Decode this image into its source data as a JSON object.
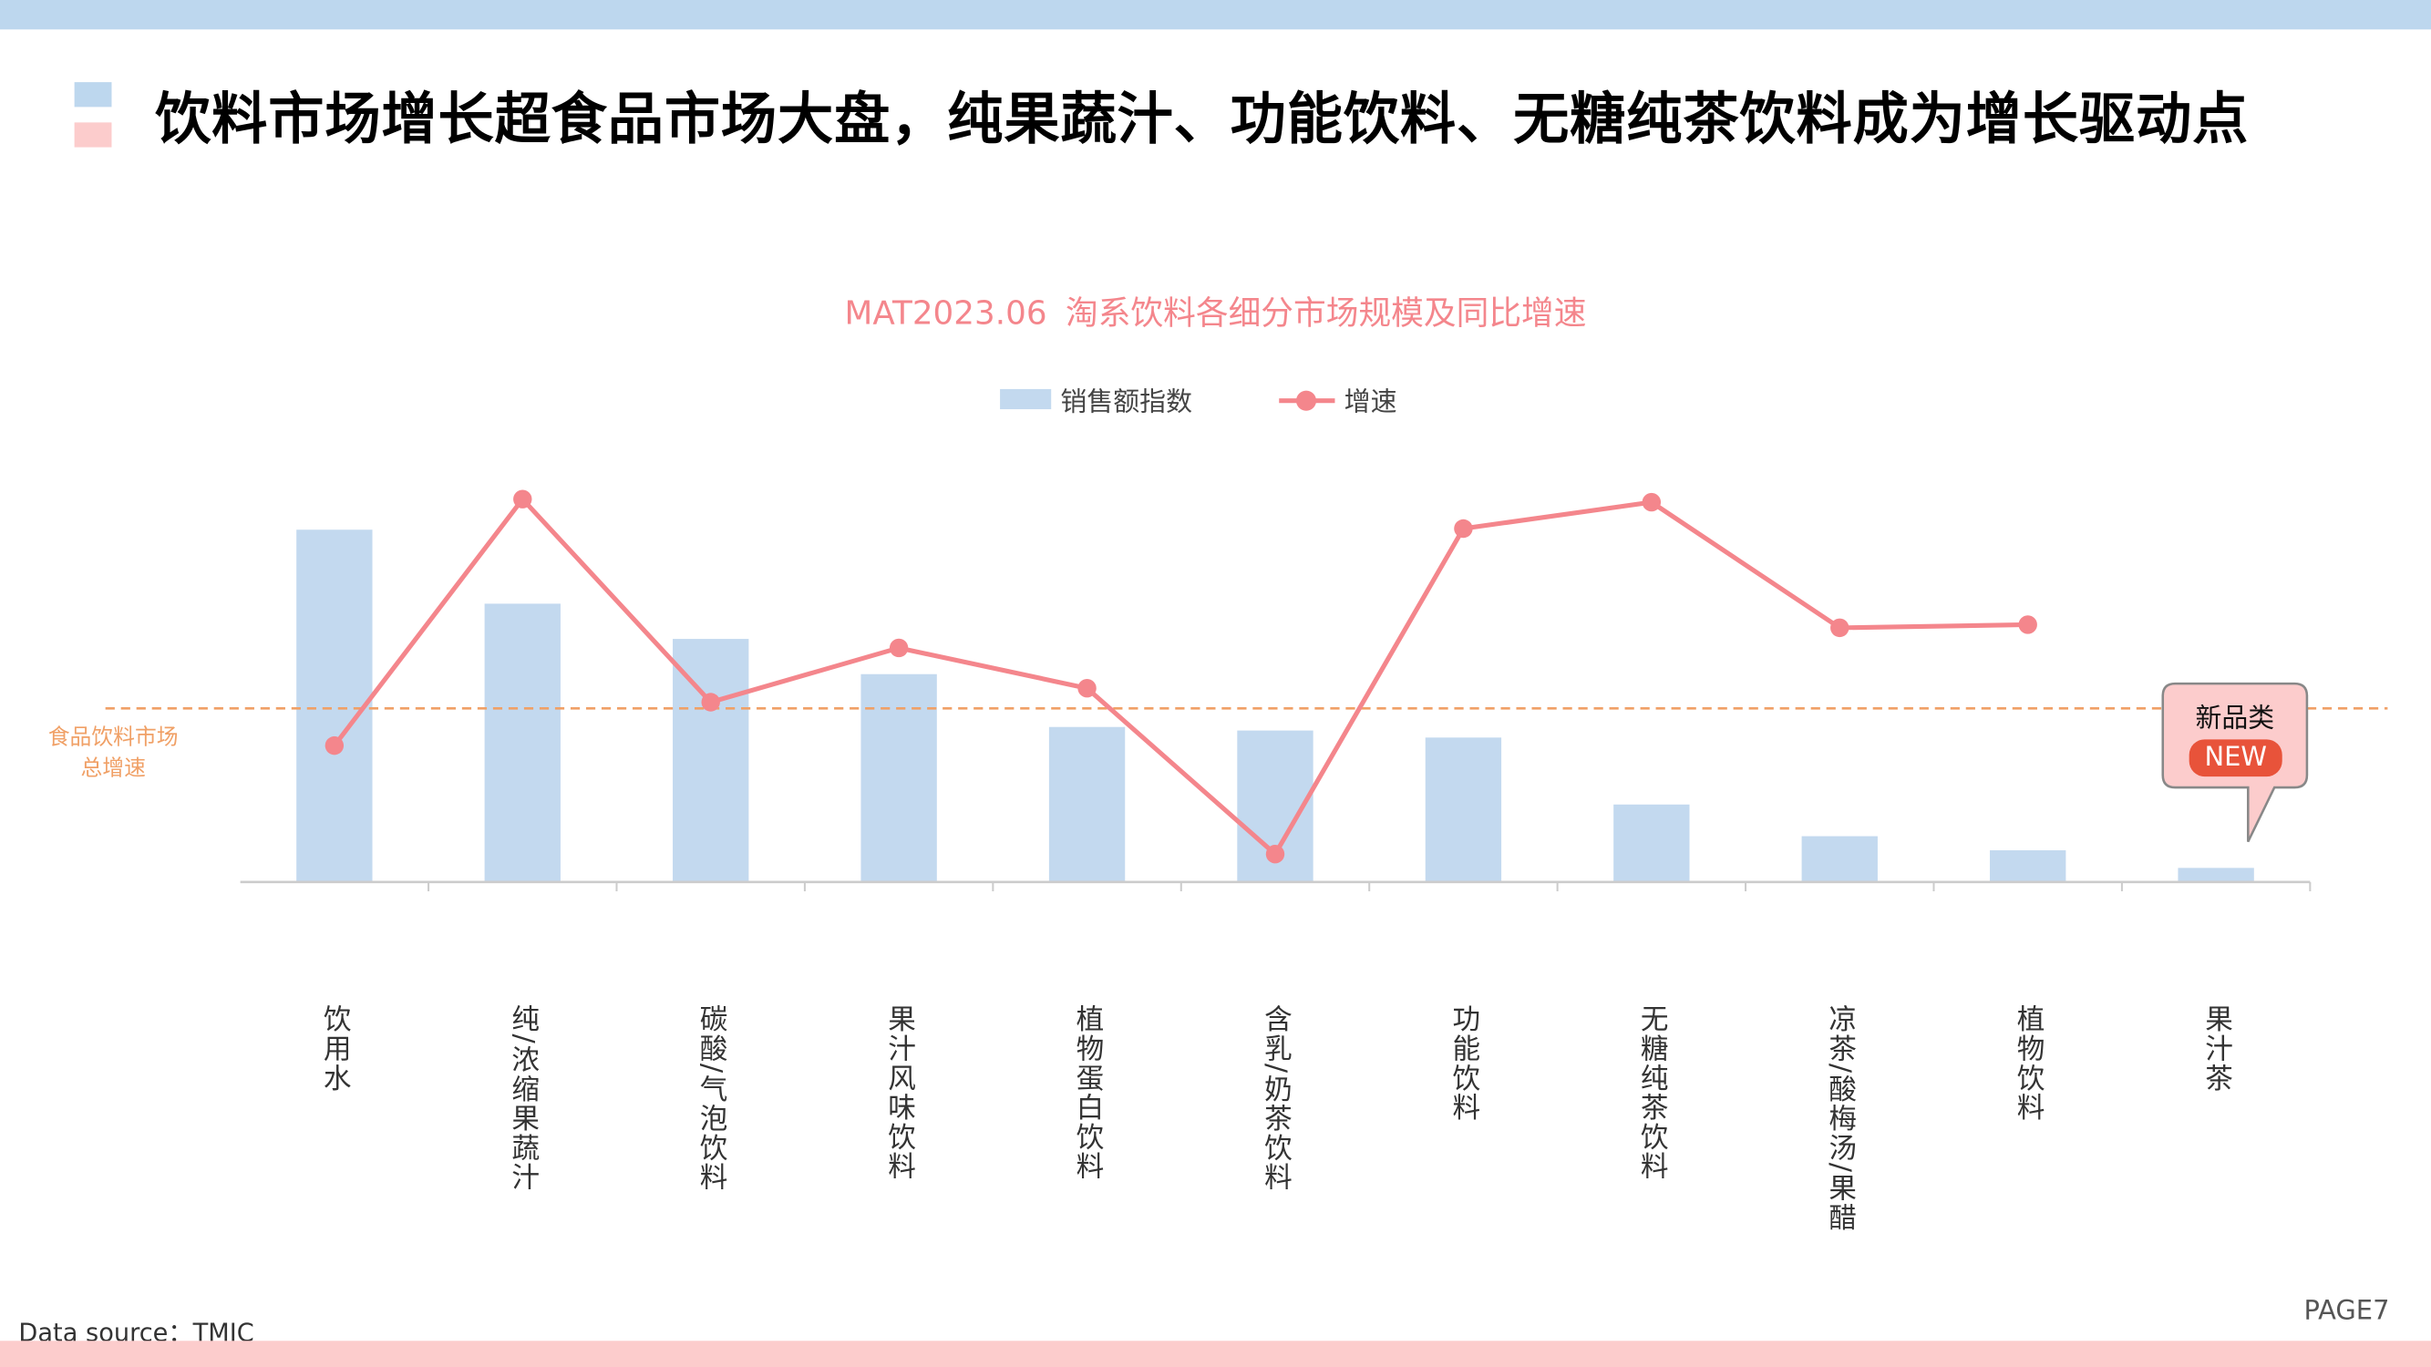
{
  "header": {
    "title": "饮料市场增长超食品市场大盘，纯果蔬汁、功能饮料、无糖纯茶饮料成为增长驱动点",
    "accent_colors": [
      "#bdd7ee",
      "#fccccc"
    ]
  },
  "chart_data": {
    "type": "bar+line",
    "title_prefix": "MAT2023.06",
    "title": "淘系饮料各细分市场规模及同比增速",
    "legend": [
      "销售额指数",
      "增速"
    ],
    "legend_placement": "top-center",
    "categories": [
      "饮用水",
      "纯/浓缩果蔬汁",
      "碳酸/气泡饮料",
      "果汁风味饮料",
      "植物蛋白饮料",
      "含乳/奶茶饮料",
      "功能饮料",
      "无糖纯茶饮料",
      "凉茶/酸梅汤/果醋",
      "植物饮料",
      "果汁茶"
    ],
    "series": [
      {
        "name": "销售额指数",
        "type": "bar",
        "color": "#c3d9ef",
        "values": [
          100,
          79,
          69,
          59,
          44,
          43,
          41,
          22,
          13,
          9,
          4
        ]
      },
      {
        "name": "增速",
        "type": "line",
        "color": "#f4868c",
        "values": [
          -24,
          135,
          4,
          39,
          13,
          -94,
          116,
          133,
          52,
          54,
          null
        ]
      }
    ],
    "reference_line": {
      "label": "食品饮料市场总增速",
      "label_lines": [
        "食品饮料市场",
        "总增速"
      ],
      "value": 0,
      "color": "#f0a066"
    },
    "bar_ylim": [
      0,
      110
    ],
    "line_ylim": [
      -120,
      160
    ],
    "grid": false,
    "annotation": {
      "text": "新品类",
      "badge": "NEW",
      "category": "果汁茶"
    }
  },
  "footer": {
    "source": "Data source：TMIC",
    "page": "PAGE7"
  }
}
